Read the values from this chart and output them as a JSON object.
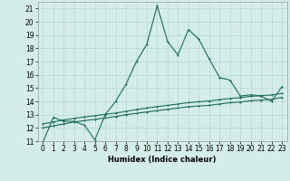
{
  "xlabel": "Humidex (Indice chaleur)",
  "bg_color": "#d4ede8",
  "line_color": "#1a6b5a",
  "grid_color": "#b8d8d2",
  "xlim": [
    -0.5,
    23.5
  ],
  "ylim": [
    11,
    21.5
  ],
  "yticks": [
    11,
    12,
    13,
    14,
    15,
    16,
    17,
    18,
    19,
    20,
    21
  ],
  "xticks": [
    0,
    1,
    2,
    3,
    4,
    5,
    6,
    7,
    8,
    9,
    10,
    11,
    12,
    13,
    14,
    15,
    16,
    17,
    18,
    19,
    20,
    21,
    22,
    23
  ],
  "series1_x": [
    0,
    1,
    2,
    3,
    4,
    5,
    6,
    7,
    8,
    9,
    10,
    11,
    12,
    13,
    14,
    15,
    16,
    17,
    18,
    19,
    20,
    21,
    22,
    23
  ],
  "series1_y": [
    10.9,
    12.8,
    12.5,
    12.5,
    12.2,
    11.1,
    13.0,
    14.0,
    15.3,
    17.0,
    18.3,
    21.2,
    18.5,
    17.5,
    19.4,
    18.7,
    17.2,
    15.8,
    15.6,
    14.4,
    14.5,
    14.4,
    14.0,
    15.1
  ],
  "series2_x": [
    0,
    1,
    2,
    3,
    4,
    5,
    6,
    7,
    8,
    9,
    10,
    11,
    12,
    13,
    14,
    15,
    16,
    17,
    18,
    19,
    20,
    21,
    22,
    23
  ],
  "series2_y": [
    12.0,
    12.15,
    12.3,
    12.45,
    12.55,
    12.65,
    12.75,
    12.85,
    13.0,
    13.1,
    13.2,
    13.3,
    13.4,
    13.5,
    13.6,
    13.65,
    13.7,
    13.8,
    13.9,
    13.95,
    14.05,
    14.1,
    14.15,
    14.3
  ],
  "series3_x": [
    0,
    1,
    2,
    3,
    4,
    5,
    6,
    7,
    8,
    9,
    10,
    11,
    12,
    13,
    14,
    15,
    16,
    17,
    18,
    19,
    20,
    21,
    22,
    23
  ],
  "series3_y": [
    12.3,
    12.45,
    12.6,
    12.72,
    12.82,
    12.92,
    13.02,
    13.12,
    13.25,
    13.38,
    13.5,
    13.6,
    13.7,
    13.8,
    13.9,
    13.97,
    14.03,
    14.13,
    14.22,
    14.28,
    14.38,
    14.43,
    14.48,
    14.6
  ]
}
